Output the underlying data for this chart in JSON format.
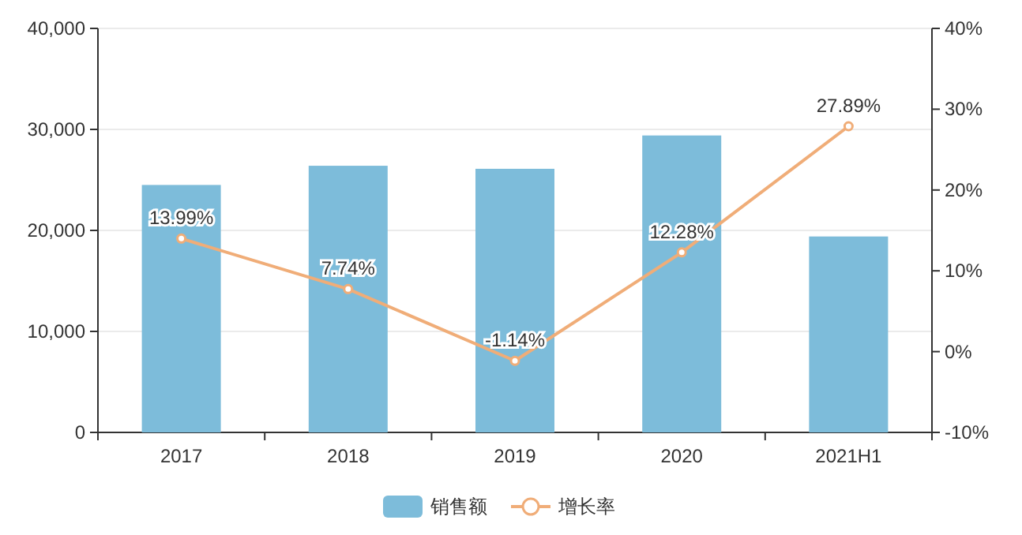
{
  "chart_data": {
    "type": "bar",
    "categories": [
      "2017",
      "2018",
      "2019",
      "2020",
      "2021H1"
    ],
    "series": [
      {
        "name": "销售额",
        "color": "#7dbcda",
        "values": [
          24500,
          26400,
          26100,
          29400,
          19400
        ]
      },
      {
        "name": "增长率",
        "type": "line",
        "axis": "y2",
        "color": "#f0ad78",
        "marker": "circle",
        "values": [
          13.99,
          7.74,
          -1.14,
          12.28,
          27.89
        ],
        "value_labels": [
          "13.99%",
          "7.74%",
          "-1.14%",
          "12.28%",
          "27.89%"
        ]
      }
    ],
    "ylim": [
      0,
      40000
    ],
    "yticks": [
      0,
      {
        "value": 10000,
        "label": "10,000"
      },
      {
        "value": 20000,
        "label": "20,000"
      },
      {
        "value": 30000,
        "label": "30,000"
      },
      {
        "value": 40000,
        "label": "40,000"
      }
    ],
    "y2lim": [
      -10,
      40
    ],
    "y2ticks": [
      {
        "value": -10,
        "label": "-10%"
      },
      {
        "value": 0,
        "label": "0%"
      },
      {
        "value": 10,
        "label": "10%"
      },
      {
        "value": 20,
        "label": "20%"
      },
      {
        "value": 30,
        "label": "30%"
      },
      {
        "value": 40,
        "label": "40%"
      }
    ],
    "grid": "y",
    "legend": "bottom"
  }
}
